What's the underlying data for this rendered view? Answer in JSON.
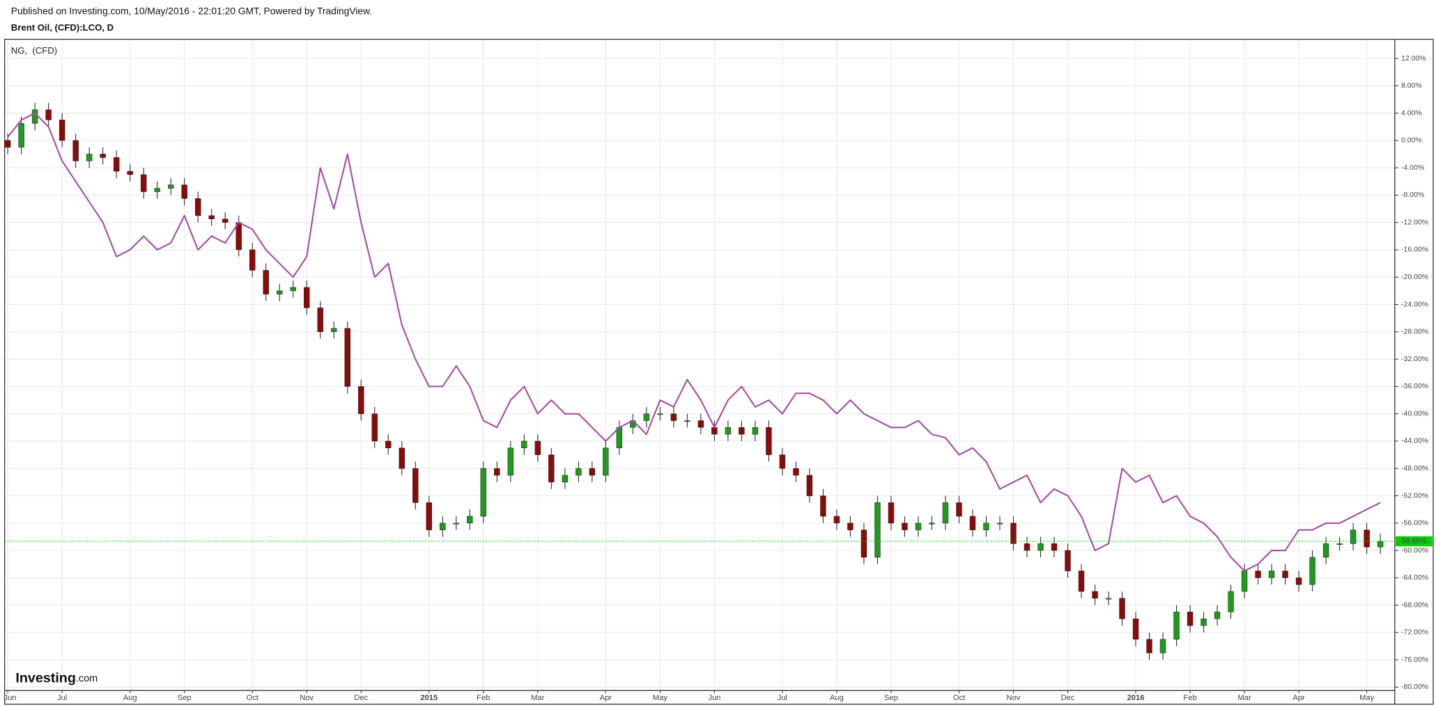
{
  "chart_data": {
    "type": "candlestick",
    "title": "Published on Investing.com, 10/May/2016 - 22:01:20 GMT, Powered by TradingView.",
    "subtitle": "Brent Oil, (CFD):LCO, D",
    "logo": "Investing",
    "logo_suffix": ".com",
    "categories": [
      "Jun",
      null,
      null,
      null,
      "Jul",
      null,
      null,
      null,
      null,
      "Aug",
      null,
      null,
      null,
      "Sep",
      null,
      null,
      null,
      null,
      "Oct",
      null,
      null,
      null,
      "Nov",
      null,
      null,
      null,
      "Dec",
      null,
      null,
      null,
      null,
      "2015",
      null,
      null,
      null,
      "Feb",
      null,
      null,
      null,
      "Mar",
      null,
      null,
      null,
      null,
      "Apr",
      null,
      null,
      null,
      "May",
      null,
      null,
      null,
      "Jun",
      null,
      null,
      null,
      null,
      "Jul",
      null,
      null,
      null,
      "Aug",
      null,
      null,
      null,
      "Sep",
      null,
      null,
      null,
      null,
      "Oct",
      null,
      null,
      null,
      "Nov",
      null,
      null,
      null,
      "Dec",
      null,
      null,
      null,
      null,
      "2016",
      null,
      null,
      null,
      "Feb",
      null,
      null,
      null,
      "Mar",
      null,
      null,
      null,
      "Apr",
      null,
      null,
      null,
      null,
      "May",
      null
    ],
    "candles": {
      "up_color": "#1f9a1f",
      "down_color": "#8b0a0a",
      "open": [
        0,
        -1,
        2.5,
        4.5,
        3,
        0,
        -3,
        -2,
        -2.5,
        -4.5,
        -5,
        -7.5,
        -7,
        -6.5,
        -8.5,
        -11,
        -11.5,
        -12,
        -16,
        -19,
        -22.5,
        -22,
        -21.5,
        -24.5,
        -28,
        -27.5,
        -36,
        -40,
        -44,
        -45,
        -48,
        -53,
        -57,
        -56,
        -56,
        -55,
        -48,
        -49,
        -45,
        -44,
        -46,
        -50,
        -49,
        -48,
        -49,
        -45,
        -42,
        -41,
        -40,
        -40,
        -41,
        -41,
        -42,
        -43,
        -42,
        -43,
        -42,
        -46,
        -48,
        -49,
        -52,
        -55,
        -56,
        -57,
        -61,
        -53,
        -56,
        -57,
        -56,
        -56,
        -53,
        -55,
        -57,
        -56,
        -56,
        -59,
        -60,
        -59,
        -60,
        -63,
        -66,
        -67,
        -67,
        -70,
        -73,
        -75,
        -73,
        -69,
        -71,
        -70,
        -69,
        -66,
        -63,
        -64,
        -63,
        -64,
        -65,
        -61,
        -59,
        -59,
        -57,
        -59.5
      ],
      "high": [
        1,
        3.5,
        5.5,
        5.5,
        4,
        1,
        -1,
        -1,
        -1.5,
        -3.5,
        -4,
        -6,
        -5.5,
        -5.5,
        -7.5,
        -10,
        -10.5,
        -11,
        -15,
        -18,
        -21,
        -20.5,
        -20.5,
        -23.5,
        -26.5,
        -26.5,
        -35,
        -39,
        -43,
        -44,
        -47,
        -52,
        -55,
        -55,
        -54,
        -47,
        -47,
        -44,
        -43,
        -43,
        -45,
        -48,
        -47,
        -47,
        -44,
        -41,
        -40,
        -39,
        -39,
        -39,
        -40,
        -40,
        -41,
        -41,
        -41,
        -41,
        -41,
        -45,
        -47,
        -48,
        -51,
        -54,
        -55,
        -56,
        -52,
        -52,
        -55,
        -55,
        -55,
        -52,
        -52,
        -54,
        -55,
        -55,
        -55,
        -58,
        -58,
        -58,
        -59,
        -62,
        -65,
        -66,
        -66,
        -69,
        -72,
        -72,
        -68,
        -68,
        -69,
        -68,
        -65,
        -62,
        -62,
        -62,
        -62,
        -63,
        -60,
        -58,
        -58,
        -56,
        -56,
        -57.5
      ],
      "low": [
        -2,
        -2,
        1.5,
        2,
        -1,
        -4,
        -4,
        -3.5,
        -5.5,
        -6,
        -8.5,
        -8.5,
        -8,
        -9.5,
        -12,
        -12.5,
        -13,
        -17,
        -20,
        -23.5,
        -23.5,
        -23,
        -25.5,
        -29,
        -29,
        -37,
        -41,
        -45,
        -46,
        -49,
        -54,
        -58,
        -58,
        -57,
        -57,
        -56,
        -50,
        -50,
        -46,
        -47,
        -51,
        -51,
        -50,
        -50,
        -50,
        -46,
        -43,
        -42,
        -41,
        -42,
        -42,
        -43,
        -44,
        -44,
        -44,
        -44,
        -47,
        -49,
        -50,
        -53,
        -56,
        -57,
        -58,
        -62,
        -62,
        -57,
        -58,
        -58,
        -57,
        -57,
        -56,
        -58,
        -58,
        -57,
        -60,
        -61,
        -61,
        -61,
        -64,
        -67,
        -68,
        -68,
        -71,
        -74,
        -76,
        -76,
        -74,
        -72,
        -72,
        -71,
        -70,
        -67,
        -65,
        -65,
        -65,
        -66,
        -66,
        -62,
        -60,
        -60,
        -60.5,
        -60.5
      ],
      "close": [
        -1,
        2.5,
        4.5,
        3,
        0,
        -3,
        -2,
        -2.5,
        -4.5,
        -5,
        -7.5,
        -7,
        -6.5,
        -8.5,
        -11,
        -11.5,
        -12,
        -16,
        -19,
        -22.5,
        -22,
        -21.5,
        -24.5,
        -28,
        -27.5,
        -36,
        -40,
        -44,
        -45,
        -48,
        -53,
        -57,
        -56,
        -56,
        -55,
        -48,
        -49,
        -45,
        -44,
        -46,
        -50,
        -49,
        -48,
        -49,
        -45,
        -42,
        -41,
        -40,
        -40,
        -41,
        -41,
        -42,
        -43,
        -42,
        -43,
        -42,
        -46,
        -48,
        -49,
        -52,
        -55,
        -56,
        -57,
        -61,
        -53,
        -56,
        -57,
        -56,
        -56,
        -53,
        -55,
        -57,
        -56,
        -56,
        -59,
        -60,
        -59,
        -60,
        -63,
        -66,
        -67,
        -67,
        -70,
        -73,
        -75,
        -73,
        -69,
        -71,
        -70,
        -69,
        -66,
        -63,
        -64,
        -63,
        -64,
        -65,
        -61,
        -59,
        -59,
        -57,
        -59.5,
        -58.66
      ]
    },
    "last_label": "-58.66%",
    "last_color": "#00d000",
    "series": [
      {
        "name": "NG,  (CFD)",
        "color": "#a64ca6",
        "values": [
          0.5,
          3,
          4,
          2,
          -3,
          -6,
          -9,
          -12,
          -17,
          -16,
          -14,
          -16,
          -15,
          -11,
          -16,
          -14,
          -15,
          -12,
          -13,
          -16,
          -18,
          -20,
          -17,
          -4,
          -10,
          -2,
          -12,
          -20,
          -18,
          -27,
          -32,
          -36,
          -36,
          -33,
          -36,
          -41,
          -42,
          -38,
          -36,
          -40,
          -38,
          -40,
          -40,
          -42,
          -44,
          -42,
          -41,
          -43,
          -38,
          -39,
          -35,
          -38,
          -42,
          -38,
          -36,
          -39,
          -38,
          -40,
          -37,
          -37,
          -38,
          -40,
          -38,
          -40,
          -41,
          -42,
          -42,
          -41,
          -43,
          -43.5,
          -46,
          -45,
          -47,
          -51,
          -50,
          -49,
          -53,
          -51,
          -52,
          -55,
          -60,
          -59,
          -48,
          -50,
          -49,
          -53,
          -52,
          -55,
          -56,
          -58,
          -61,
          -63,
          -62,
          -60,
          -60,
          -57,
          -57,
          -56,
          -56,
          -55,
          -54,
          -53
        ]
      }
    ],
    "ylim": [
      -80.5,
      14.8
    ],
    "yticks": [
      {
        "value": 12,
        "label": "12.00%"
      },
      {
        "value": 8,
        "label": "8.00%"
      },
      {
        "value": 4,
        "label": "4.00%"
      },
      {
        "value": 0,
        "label": "0.00%"
      },
      {
        "value": -4,
        "label": "-4.00%"
      },
      {
        "value": -8,
        "label": "-8.00%"
      },
      {
        "value": -12,
        "label": "-12.00%"
      },
      {
        "value": -16,
        "label": "-16.00%"
      },
      {
        "value": -20,
        "label": "-20.00%"
      },
      {
        "value": -24,
        "label": "-24.00%"
      },
      {
        "value": -28,
        "label": "-28.00%"
      },
      {
        "value": -32,
        "label": "-32.00%"
      },
      {
        "value": -36,
        "label": "-36.00%"
      },
      {
        "value": -40,
        "label": "-40.00%"
      },
      {
        "value": -44,
        "label": "-44.00%"
      },
      {
        "value": -48,
        "label": "-48.00%"
      },
      {
        "value": -52,
        "label": "-52.00%"
      },
      {
        "value": -56,
        "label": "-56.00%"
      },
      {
        "value": -60,
        "label": "-60.00%"
      },
      {
        "value": -64,
        "label": "-64.00%"
      },
      {
        "value": -68,
        "label": "-68.00%"
      },
      {
        "value": -72,
        "label": "-72.00%"
      },
      {
        "value": -76,
        "label": "-76.00%"
      },
      {
        "value": -80,
        "label": "-80.00%"
      }
    ],
    "grid": true
  }
}
